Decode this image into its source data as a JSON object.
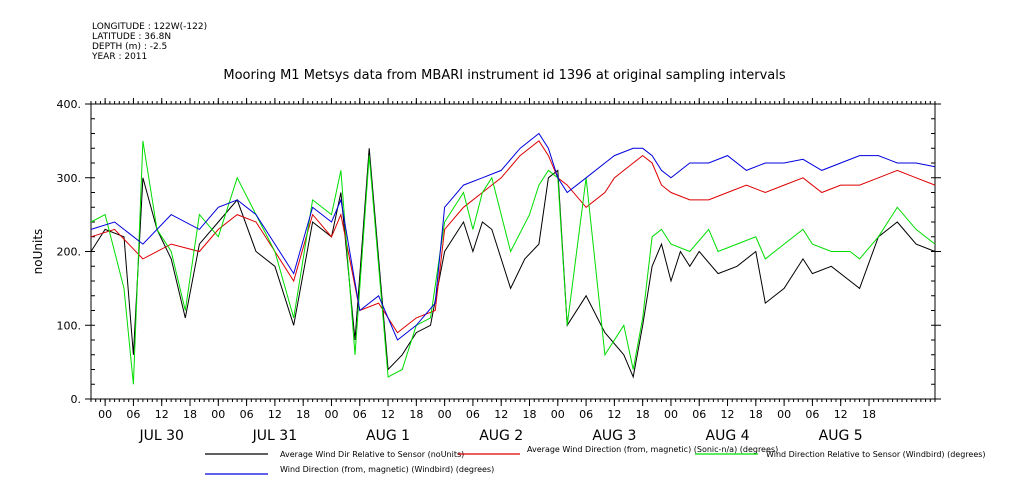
{
  "header": {
    "longitude": "LONGITUDE : 122W(-122)",
    "latitude": "LATITUDE : 36.8N",
    "depth": "DEPTH (m) : -2.5",
    "year": "YEAR : 2011"
  },
  "chart_data": {
    "type": "line",
    "title": "Mooring M1 Metsys data from MBARI instrument id 1396 at original sampling intervals",
    "ylabel": "noUnits",
    "ylim": [
      0,
      400
    ],
    "yticks": [
      0,
      100,
      200,
      300,
      400
    ],
    "ytick_labels": [
      "0.",
      "100.",
      "200.",
      "300.",
      "400."
    ],
    "x_start_hour": -3,
    "x_end_hour": 176,
    "hour_ticks": [
      "00",
      "06",
      "12",
      "18",
      "00",
      "06",
      "12",
      "18",
      "00",
      "06",
      "12",
      "18",
      "00",
      "06",
      "12",
      "18",
      "00",
      "06",
      "12",
      "18",
      "00",
      "06",
      "12",
      "18",
      "00",
      "06",
      "12",
      "18"
    ],
    "day_labels": [
      "JUL 30",
      "JUL 31",
      "AUG  1",
      "AUG  2",
      "AUG  3",
      "AUG  4",
      "AUG  5"
    ],
    "grid": false,
    "series": [
      {
        "name": "Average Wind Dir Relative to Sensor (noUnits)",
        "color": "#000000",
        "points": [
          [
            -3,
            200
          ],
          [
            0,
            230
          ],
          [
            4,
            220
          ],
          [
            6,
            60
          ],
          [
            8,
            300
          ],
          [
            11,
            230
          ],
          [
            14,
            190
          ],
          [
            17,
            110
          ],
          [
            20,
            210
          ],
          [
            24,
            240
          ],
          [
            28,
            270
          ],
          [
            32,
            200
          ],
          [
            36,
            180
          ],
          [
            40,
            100
          ],
          [
            44,
            240
          ],
          [
            48,
            220
          ],
          [
            50,
            280
          ],
          [
            53,
            80
          ],
          [
            56,
            340
          ],
          [
            60,
            40
          ],
          [
            63,
            60
          ],
          [
            66,
            90
          ],
          [
            69,
            100
          ],
          [
            72,
            200
          ],
          [
            76,
            240
          ],
          [
            78,
            200
          ],
          [
            80,
            240
          ],
          [
            82,
            230
          ],
          [
            86,
            150
          ],
          [
            89,
            190
          ],
          [
            92,
            210
          ],
          [
            94,
            300
          ],
          [
            96,
            310
          ],
          [
            98,
            100
          ],
          [
            102,
            140
          ],
          [
            106,
            90
          ],
          [
            110,
            60
          ],
          [
            112,
            30
          ],
          [
            114,
            100
          ],
          [
            116,
            180
          ],
          [
            118,
            210
          ],
          [
            120,
            160
          ],
          [
            122,
            200
          ],
          [
            124,
            180
          ],
          [
            126,
            200
          ],
          [
            130,
            170
          ],
          [
            134,
            180
          ],
          [
            138,
            200
          ],
          [
            140,
            130
          ],
          [
            144,
            150
          ],
          [
            148,
            190
          ],
          [
            150,
            170
          ],
          [
            154,
            180
          ],
          [
            158,
            160
          ],
          [
            160,
            150
          ],
          [
            164,
            220
          ],
          [
            168,
            240
          ],
          [
            172,
            210
          ],
          [
            176,
            200
          ]
        ]
      },
      {
        "name": "Average Wind Direction (from, magnetic) (Sonic-n/a) (degrees)",
        "color": "#dd0000",
        "points": [
          [
            -3,
            220
          ],
          [
            2,
            230
          ],
          [
            8,
            190
          ],
          [
            14,
            210
          ],
          [
            20,
            200
          ],
          [
            24,
            230
          ],
          [
            28,
            250
          ],
          [
            32,
            240
          ],
          [
            36,
            200
          ],
          [
            40,
            160
          ],
          [
            44,
            250
          ],
          [
            48,
            220
          ],
          [
            50,
            250
          ],
          [
            54,
            120
          ],
          [
            58,
            130
          ],
          [
            62,
            90
          ],
          [
            66,
            110
          ],
          [
            70,
            120
          ],
          [
            72,
            230
          ],
          [
            76,
            260
          ],
          [
            80,
            280
          ],
          [
            84,
            300
          ],
          [
            88,
            330
          ],
          [
            92,
            350
          ],
          [
            94,
            330
          ],
          [
            96,
            300
          ],
          [
            98,
            290
          ],
          [
            102,
            260
          ],
          [
            106,
            280
          ],
          [
            108,
            300
          ],
          [
            112,
            320
          ],
          [
            114,
            330
          ],
          [
            116,
            320
          ],
          [
            118,
            290
          ],
          [
            120,
            280
          ],
          [
            124,
            270
          ],
          [
            128,
            270
          ],
          [
            132,
            280
          ],
          [
            136,
            290
          ],
          [
            140,
            280
          ],
          [
            144,
            290
          ],
          [
            148,
            300
          ],
          [
            152,
            280
          ],
          [
            156,
            290
          ],
          [
            160,
            290
          ],
          [
            164,
            300
          ],
          [
            168,
            310
          ],
          [
            172,
            300
          ],
          [
            176,
            290
          ]
        ]
      },
      {
        "name": "Wind Direction Relative to Sensor (Windbird) (degrees)",
        "color": "#00dd00",
        "points": [
          [
            -3,
            240
          ],
          [
            0,
            250
          ],
          [
            4,
            150
          ],
          [
            6,
            20
          ],
          [
            8,
            350
          ],
          [
            11,
            230
          ],
          [
            14,
            200
          ],
          [
            17,
            120
          ],
          [
            20,
            250
          ],
          [
            24,
            220
          ],
          [
            28,
            300
          ],
          [
            32,
            250
          ],
          [
            36,
            200
          ],
          [
            40,
            110
          ],
          [
            44,
            270
          ],
          [
            48,
            250
          ],
          [
            50,
            310
          ],
          [
            53,
            60
          ],
          [
            56,
            330
          ],
          [
            60,
            30
          ],
          [
            63,
            40
          ],
          [
            66,
            100
          ],
          [
            69,
            110
          ],
          [
            72,
            240
          ],
          [
            76,
            280
          ],
          [
            78,
            230
          ],
          [
            80,
            280
          ],
          [
            82,
            300
          ],
          [
            86,
            200
          ],
          [
            90,
            250
          ],
          [
            92,
            290
          ],
          [
            94,
            310
          ],
          [
            96,
            300
          ],
          [
            98,
            100
          ],
          [
            102,
            300
          ],
          [
            106,
            60
          ],
          [
            110,
            100
          ],
          [
            112,
            40
          ],
          [
            114,
            110
          ],
          [
            116,
            220
          ],
          [
            118,
            230
          ],
          [
            120,
            210
          ],
          [
            124,
            200
          ],
          [
            128,
            230
          ],
          [
            130,
            200
          ],
          [
            134,
            210
          ],
          [
            138,
            220
          ],
          [
            140,
            190
          ],
          [
            144,
            210
          ],
          [
            148,
            230
          ],
          [
            150,
            210
          ],
          [
            154,
            200
          ],
          [
            158,
            200
          ],
          [
            160,
            190
          ],
          [
            164,
            220
          ],
          [
            168,
            260
          ],
          [
            172,
            230
          ],
          [
            176,
            210
          ]
        ]
      },
      {
        "name": "Wind Direction (from, magnetic) (Windbird) (degrees)",
        "color": "#0000dd",
        "points": [
          [
            -3,
            230
          ],
          [
            2,
            240
          ],
          [
            8,
            210
          ],
          [
            14,
            250
          ],
          [
            20,
            230
          ],
          [
            24,
            260
          ],
          [
            28,
            270
          ],
          [
            32,
            250
          ],
          [
            36,
            210
          ],
          [
            40,
            170
          ],
          [
            44,
            260
          ],
          [
            48,
            240
          ],
          [
            50,
            270
          ],
          [
            54,
            120
          ],
          [
            58,
            140
          ],
          [
            62,
            80
          ],
          [
            66,
            100
          ],
          [
            70,
            130
          ],
          [
            72,
            260
          ],
          [
            76,
            290
          ],
          [
            80,
            300
          ],
          [
            84,
            310
          ],
          [
            88,
            340
          ],
          [
            92,
            360
          ],
          [
            94,
            340
          ],
          [
            96,
            300
          ],
          [
            98,
            280
          ],
          [
            102,
            300
          ],
          [
            106,
            320
          ],
          [
            108,
            330
          ],
          [
            112,
            340
          ],
          [
            114,
            340
          ],
          [
            116,
            330
          ],
          [
            118,
            310
          ],
          [
            120,
            300
          ],
          [
            124,
            320
          ],
          [
            128,
            320
          ],
          [
            132,
            330
          ],
          [
            136,
            310
          ],
          [
            140,
            320
          ],
          [
            144,
            320
          ],
          [
            148,
            325
          ],
          [
            152,
            310
          ],
          [
            156,
            320
          ],
          [
            160,
            330
          ],
          [
            164,
            330
          ],
          [
            168,
            320
          ],
          [
            172,
            320
          ],
          [
            176,
            315
          ]
        ]
      }
    ]
  }
}
